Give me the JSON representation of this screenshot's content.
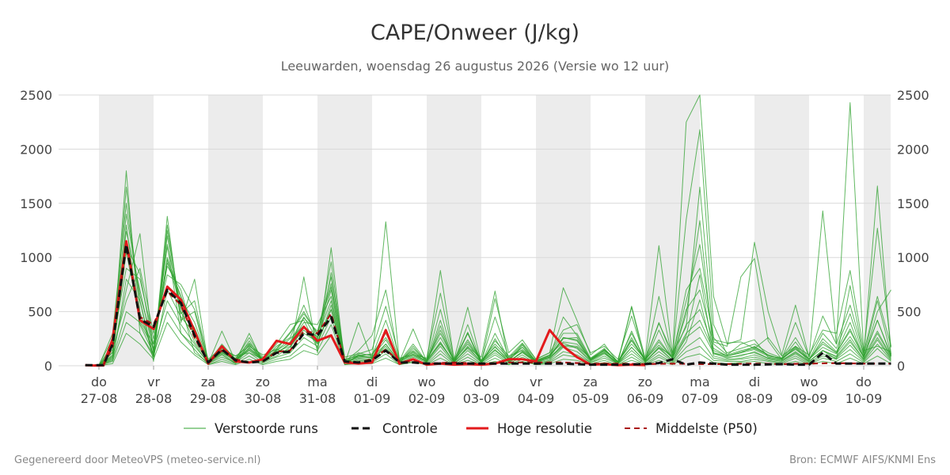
{
  "chart_data": {
    "type": "line",
    "title": "CAPE/Onweer (J/kg)",
    "subtitle": "Leeuwarden, woensdag 26 augustus 2026 (Versie wo 12 uur)",
    "ylim": [
      0,
      2500
    ],
    "y_ticks": [
      0,
      500,
      1000,
      1500,
      2000,
      2500
    ],
    "x_ticks": [
      {
        "day": "do",
        "date": "27-08"
      },
      {
        "day": "vr",
        "date": "28-08"
      },
      {
        "day": "za",
        "date": "29-08"
      },
      {
        "day": "zo",
        "date": "30-08"
      },
      {
        "day": "ma",
        "date": "31-08"
      },
      {
        "day": "di",
        "date": "01-09"
      },
      {
        "day": "wo",
        "date": "02-09"
      },
      {
        "day": "do",
        "date": "03-09"
      },
      {
        "day": "vr",
        "date": "04-09"
      },
      {
        "day": "za",
        "date": "05-09"
      },
      {
        "day": "zo",
        "date": "06-09"
      },
      {
        "day": "ma",
        "date": "07-09"
      },
      {
        "day": "di",
        "date": "08-09"
      },
      {
        "day": "wo",
        "date": "09-09"
      },
      {
        "day": "do",
        "date": "10-09"
      }
    ],
    "x_start_day": -0.25,
    "x_end_day": 14.5,
    "shaded_weekend_days": [
      0,
      2,
      4,
      6,
      8,
      10,
      12,
      14
    ],
    "grid": true,
    "legend_position": "bottom",
    "colors": {
      "ensemble": "#2ca02c",
      "control": "#111111",
      "hires": "#e31a1c",
      "median": "#aa1111",
      "band": "#ececec"
    },
    "series": [
      {
        "name": "Hoge resolutie",
        "style": "solid",
        "x": [
          -0.25,
          -0.0833,
          0.0833,
          0.25,
          0.5,
          0.75,
          1.0,
          1.25,
          1.5,
          1.75,
          2.0,
          2.25,
          2.5,
          2.75,
          3.0,
          3.25,
          3.5,
          3.75,
          4.0,
          4.25,
          4.5,
          4.75,
          5.0,
          5.25,
          5.5,
          5.75,
          6.0,
          6.25,
          6.5,
          6.75,
          7.0,
          7.25,
          7.5,
          7.75,
          8.0,
          8.25,
          8.5,
          8.75,
          9.0,
          9.25,
          9.5,
          9.75,
          10.0
        ],
        "values": [
          5,
          2,
          3,
          250,
          1150,
          420,
          340,
          730,
          610,
          320,
          20,
          180,
          40,
          30,
          60,
          230,
          200,
          360,
          230,
          280,
          30,
          20,
          30,
          330,
          20,
          60,
          10,
          20,
          10,
          15,
          10,
          20,
          60,
          60,
          40,
          330,
          180,
          80,
          10,
          15,
          5,
          10,
          5
        ]
      },
      {
        "name": "Middelste (P50)",
        "style": "dashed",
        "x": [
          -0.25,
          0.0833,
          0.25,
          0.5,
          0.75,
          1.0,
          1.25,
          1.5,
          1.75,
          2.0,
          2.25,
          2.5,
          2.75,
          3.0,
          3.25,
          3.5,
          3.75,
          4.0,
          4.25,
          4.5,
          4.75,
          5.0,
          5.25,
          5.5,
          5.75,
          6.0,
          6.5,
          7.0,
          7.5,
          8.0,
          8.5,
          9.0,
          9.5,
          10.0,
          10.5,
          11.0,
          11.5,
          12.0,
          12.5,
          13.0,
          13.5,
          14.0,
          14.5
        ],
        "values": [
          5,
          5,
          180,
          1100,
          450,
          380,
          690,
          560,
          260,
          30,
          140,
          60,
          30,
          40,
          130,
          140,
          320,
          300,
          480,
          40,
          30,
          60,
          150,
          40,
          40,
          20,
          30,
          20,
          30,
          30,
          30,
          20,
          20,
          15,
          20,
          15,
          15,
          20,
          15,
          20,
          25,
          20,
          20
        ]
      },
      {
        "name": "Controle",
        "style": "dashed",
        "x": [
          -0.25,
          0.0833,
          0.25,
          0.5,
          0.75,
          1.0,
          1.25,
          1.5,
          1.75,
          2.0,
          2.25,
          2.5,
          2.75,
          3.0,
          3.25,
          3.5,
          3.75,
          4.0,
          4.25,
          4.5,
          4.75,
          5.0,
          5.25,
          5.5,
          5.75,
          6.0,
          6.5,
          7.0,
          7.5,
          8.0,
          8.5,
          9.0,
          9.5,
          10.0,
          10.25,
          10.5,
          10.75,
          11.0,
          11.5,
          12.0,
          12.5,
          12.75,
          13.0,
          13.25,
          13.5,
          14.0,
          14.5
        ],
        "values": [
          5,
          5,
          200,
          1120,
          430,
          360,
          700,
          580,
          280,
          30,
          150,
          50,
          30,
          40,
          120,
          130,
          300,
          280,
          450,
          40,
          30,
          50,
          140,
          30,
          30,
          20,
          20,
          20,
          20,
          20,
          20,
          10,
          10,
          15,
          25,
          60,
          10,
          30,
          10,
          10,
          15,
          10,
          10,
          120,
          20,
          20,
          20
        ]
      }
    ],
    "ensemble_x": [
      -0.25,
      0.0,
      0.25,
      0.5,
      0.75,
      1.0,
      1.25,
      1.5,
      1.75,
      2.0,
      2.25,
      2.5,
      2.75,
      3.0,
      3.25,
      3.5,
      3.75,
      4.0,
      4.25,
      4.5,
      4.75,
      5.0,
      5.25,
      5.5,
      5.75,
      6.0,
      6.25,
      6.5,
      6.75,
      7.0,
      7.25,
      7.5,
      7.75,
      8.0,
      8.25,
      8.5,
      8.75,
      9.0,
      9.25,
      9.5,
      9.75,
      10.0,
      10.25,
      10.5,
      10.75,
      11.0,
      11.25,
      11.5,
      11.75,
      12.0,
      12.25,
      12.5,
      12.75,
      13.0,
      13.25,
      13.5,
      13.75,
      14.0,
      14.25,
      14.5
    ],
    "ensemble_runs": [
      [
        0,
        5,
        120,
        1800,
        300,
        80,
        1380,
        400,
        800,
        20,
        320,
        40,
        300,
        30,
        150,
        120,
        820,
        120,
        1090,
        20,
        400,
        60,
        1330,
        40,
        340,
        40,
        880,
        60,
        540,
        30,
        620,
        120,
        240,
        60,
        120,
        720,
        420,
        100,
        200,
        30,
        550,
        70,
        1110,
        100,
        2250,
        2500,
        640,
        200,
        240,
        1140,
        500,
        100,
        560,
        80,
        1430,
        200,
        2430,
        120,
        640,
        180
      ],
      [
        0,
        0,
        300,
        1500,
        600,
        40,
        1250,
        500,
        220,
        40,
        150,
        90,
        120,
        60,
        200,
        380,
        420,
        160,
        860,
        40,
        140,
        280,
        700,
        30,
        130,
        30,
        370,
        30,
        310,
        20,
        230,
        90,
        140,
        40,
        80,
        450,
        280,
        60,
        120,
        20,
        320,
        40,
        640,
        80,
        1350,
        2180,
        380,
        100,
        200,
        240,
        80,
        60,
        400,
        80,
        460,
        200,
        560,
        120,
        1270,
        170
      ],
      [
        0,
        10,
        250,
        1240,
        700,
        120,
        1000,
        620,
        400,
        50,
        160,
        90,
        180,
        100,
        150,
        300,
        480,
        300,
        820,
        80,
        110,
        150,
        550,
        70,
        100,
        70,
        670,
        60,
        300,
        40,
        450,
        80,
        210,
        60,
        120,
        330,
        380,
        120,
        180,
        60,
        460,
        60,
        390,
        120,
        360,
        1650,
        240,
        210,
        220,
        160,
        260,
        90,
        180,
        100,
        330,
        300,
        880,
        140,
        180,
        130
      ],
      [
        0,
        0,
        100,
        1050,
        420,
        200,
        980,
        550,
        120,
        30,
        110,
        30,
        200,
        40,
        110,
        210,
        400,
        380,
        640,
        20,
        100,
        70,
        160,
        30,
        160,
        50,
        220,
        30,
        170,
        80,
        690,
        30,
        130,
        30,
        80,
        190,
        180,
        70,
        140,
        40,
        540,
        30,
        170,
        90,
        600,
        1120,
        220,
        180,
        820,
        990,
        230,
        60,
        170,
        40,
        140,
        60,
        740,
        90,
        1660,
        90
      ],
      [
        0,
        0,
        200,
        900,
        800,
        250,
        920,
        700,
        250,
        40,
        130,
        40,
        190,
        60,
        120,
        200,
        440,
        320,
        730,
        30,
        90,
        80,
        240,
        40,
        110,
        40,
        330,
        40,
        220,
        40,
        180,
        40,
        190,
        40,
        90,
        260,
        230,
        50,
        150,
        30,
        230,
        50,
        220,
        70,
        480,
        1340,
        120,
        90,
        120,
        180,
        100,
        60,
        160,
        60,
        200,
        120,
        320,
        80,
        420,
        100
      ],
      [
        0,
        0,
        50,
        800,
        600,
        80,
        700,
        450,
        300,
        20,
        100,
        20,
        170,
        40,
        90,
        170,
        350,
        270,
        600,
        20,
        60,
        50,
        200,
        30,
        90,
        40,
        210,
        30,
        180,
        30,
        140,
        40,
        120,
        30,
        60,
        210,
        160,
        40,
        110,
        20,
        170,
        40,
        160,
        50,
        280,
        840,
        110,
        80,
        90,
        130,
        70,
        50,
        130,
        40,
        140,
        90,
        240,
        60,
        300,
        80
      ],
      [
        0,
        0,
        80,
        700,
        1220,
        120,
        1120,
        300,
        180,
        30,
        120,
        50,
        140,
        50,
        120,
        150,
        300,
        220,
        520,
        30,
        70,
        60,
        180,
        20,
        80,
        30,
        180,
        20,
        140,
        30,
        120,
        30,
        100,
        20,
        50,
        170,
        130,
        30,
        90,
        20,
        140,
        30,
        130,
        40,
        220,
        610,
        90,
        60,
        70,
        100,
        60,
        40,
        110,
        30,
        110,
        70,
        190,
        50,
        240,
        60
      ],
      [
        0,
        0,
        150,
        600,
        900,
        300,
        840,
        750,
        520,
        60,
        170,
        60,
        160,
        70,
        140,
        250,
        370,
        200,
        560,
        60,
        90,
        110,
        260,
        60,
        120,
        60,
        260,
        50,
        200,
        50,
        170,
        60,
        150,
        50,
        100,
        220,
        200,
        60,
        140,
        40,
        200,
        60,
        190,
        70,
        300,
        420,
        140,
        90,
        120,
        150,
        90,
        70,
        150,
        60,
        170,
        110,
        270,
        80,
        320,
        90
      ],
      [
        0,
        0,
        60,
        500,
        400,
        160,
        600,
        380,
        200,
        20,
        80,
        30,
        120,
        30,
        80,
        120,
        260,
        180,
        450,
        20,
        50,
        40,
        140,
        20,
        60,
        20,
        140,
        20,
        110,
        20,
        100,
        20,
        80,
        20,
        40,
        130,
        100,
        30,
        70,
        20,
        110,
        20,
        100,
        30,
        170,
        260,
        70,
        50,
        60,
        80,
        50,
        30,
        90,
        20,
        90,
        60,
        150,
        40,
        200,
        50
      ],
      [
        0,
        0,
        40,
        400,
        300,
        100,
        500,
        300,
        150,
        10,
        60,
        20,
        90,
        20,
        60,
        90,
        200,
        140,
        380,
        10,
        40,
        30,
        110,
        10,
        40,
        10,
        110,
        10,
        80,
        10,
        70,
        10,
        60,
        10,
        30,
        100,
        80,
        20,
        50,
        10,
        80,
        10,
        80,
        20,
        130,
        180,
        50,
        40,
        40,
        60,
        40,
        20,
        70,
        10,
        70,
        40,
        110,
        30,
        160,
        40
      ],
      [
        0,
        0,
        90,
        1650,
        500,
        90,
        1300,
        480,
        600,
        30,
        200,
        60,
        260,
        50,
        180,
        260,
        560,
        250,
        960,
        30,
        120,
        90,
        420,
        40,
        200,
        40,
        520,
        40,
        380,
        30,
        300,
        60,
        200,
        40,
        100,
        300,
        300,
        70,
        160,
        30,
        300,
        50,
        400,
        80,
        700,
        900,
        260,
        120,
        160,
        200,
        120,
        70,
        260,
        60,
        300,
        160,
        480,
        90,
        600,
        110
      ],
      [
        0,
        0,
        180,
        1400,
        650,
        200,
        1100,
        560,
        350,
        40,
        140,
        70,
        210,
        80,
        160,
        310,
        500,
        290,
        760,
        50,
        100,
        100,
        300,
        50,
        140,
        50,
        300,
        50,
        240,
        50,
        200,
        70,
        170,
        50,
        90,
        260,
        240,
        60,
        150,
        40,
        240,
        60,
        240,
        70,
        380,
        520,
        160,
        90,
        130,
        160,
        100,
        60,
        180,
        60,
        220,
        120,
        340,
        80,
        420,
        90
      ],
      [
        0,
        0,
        20,
        300,
        200,
        60,
        400,
        220,
        100,
        10,
        40,
        10,
        60,
        10,
        40,
        60,
        140,
        100,
        280,
        10,
        20,
        20,
        70,
        10,
        30,
        10,
        70,
        10,
        50,
        10,
        40,
        10,
        40,
        10,
        20,
        60,
        50,
        10,
        30,
        10,
        50,
        10,
        50,
        10,
        80,
        110,
        30,
        20,
        30,
        40,
        20,
        10,
        40,
        10,
        40,
        20,
        70,
        20,
        90,
        20
      ],
      [
        0,
        0,
        130,
        1100,
        850,
        150,
        950,
        650,
        280,
        40,
        120,
        50,
        150,
        60,
        130,
        180,
        330,
        210,
        520,
        40,
        80,
        80,
        200,
        40,
        100,
        40,
        200,
        40,
        160,
        40,
        150,
        40,
        130,
        40,
        70,
        180,
        170,
        50,
        120,
        30,
        170,
        40,
        170,
        50,
        260,
        360,
        120,
        70,
        100,
        120,
        70,
        50,
        120,
        40,
        140,
        80,
        220,
        60,
        260,
        70
      ],
      [
        0,
        0,
        70,
        1300,
        380,
        110,
        1200,
        420,
        500,
        20,
        180,
        40,
        230,
        40,
        140,
        220,
        450,
        240,
        700,
        20,
        90,
        70,
        330,
        30,
        180,
        30,
        420,
        30,
        300,
        20,
        250,
        50,
        170,
        30,
        80,
        250,
        260,
        50,
        130,
        20,
        260,
        40,
        330,
        60,
        520,
        700,
        200,
        100,
        140,
        170,
        100,
        60,
        220,
        50,
        250,
        130,
        400,
        70,
        500,
        700
      ]
    ],
    "legend": [
      "Verstoorde runs",
      "Controle",
      "Hoge resolutie",
      "Middelste (P50)"
    ]
  },
  "footer": {
    "left": "Gegenereerd door MeteoVPS (meteo-service.nl)",
    "right": "Bron: ECMWF AIFS/KNMI Ens"
  }
}
